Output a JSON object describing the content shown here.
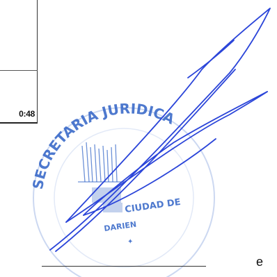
{
  "table": {
    "time_value": "0:48"
  },
  "stamp": {
    "top_text": "SECRETARIA JURIDICA",
    "middle_line_1": "CIUDAD DE",
    "middle_line_2": "DARIEN",
    "color": "#2f62c6"
  },
  "signature": {
    "color": "#2b45d9"
  },
  "page": {
    "corner_letter": "e"
  }
}
